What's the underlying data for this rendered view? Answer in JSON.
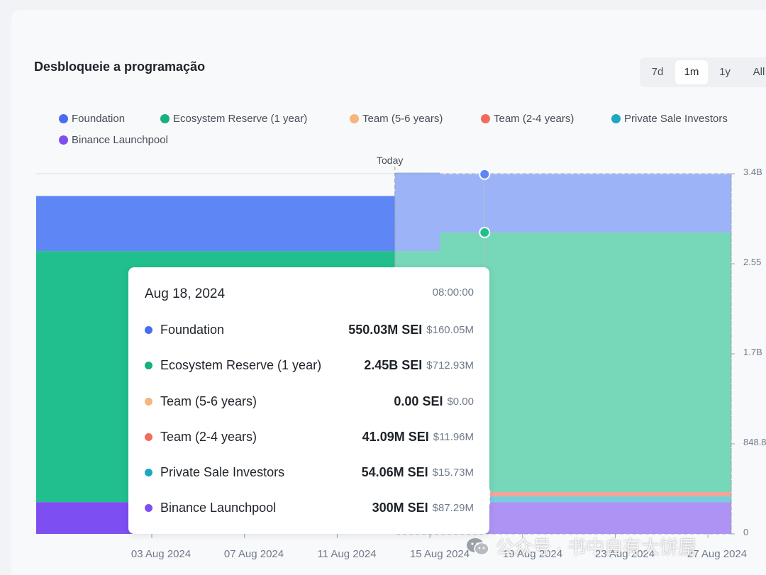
{
  "header": {
    "title": "Desbloqueie a programação"
  },
  "range_buttons": [
    "7d",
    "1m",
    "1y",
    "All"
  ],
  "range_active": "1m",
  "today_label": "Today",
  "colors": {
    "Foundation": "#5f86f5",
    "Ecosystem Reserve (1 year)": "#21bf8e",
    "Team (5-6 years)": "#f5b67c",
    "Team (2-4 years)": "#f26b5b",
    "Private Sale Investors": "#23b3c8",
    "Binance Launchpool": "#7d4ef2"
  },
  "tooltip": {
    "date": "Aug 18, 2024",
    "time": "08:00:00",
    "rows": [
      {
        "name": "Foundation",
        "amount": "550.03M SEI",
        "usd": "$160.05M",
        "color": "#4a6cf0"
      },
      {
        "name": "Ecosystem Reserve (1 year)",
        "amount": "2.45B SEI",
        "usd": "$712.93M",
        "color": "#19b07f"
      },
      {
        "name": "Team (5-6 years)",
        "amount": "0.00 SEI",
        "usd": "$0.00",
        "color": "#f5b67c"
      },
      {
        "name": "Team (2-4 years)",
        "amount": "41.09M SEI",
        "usd": "$11.96M",
        "color": "#f26b5b"
      },
      {
        "name": "Private Sale Investors",
        "amount": "54.06M SEI",
        "usd": "$15.73M",
        "color": "#1ea8bd"
      },
      {
        "name": "Binance Launchpool",
        "amount": "300M SEI",
        "usd": "$87.29M",
        "color": "#7d4ef2"
      }
    ]
  },
  "watermark": "公众号 · 书中自有大饼屋",
  "chart_data": {
    "type": "area",
    "stacked": true,
    "legend": [
      "Foundation",
      "Ecosystem Reserve (1 year)",
      "Team (5-6 years)",
      "Team (2-4 years)",
      "Private Sale Investors",
      "Binance Launchpool"
    ],
    "legend_position": "top-left",
    "x_ticks": [
      "03 Aug 2024",
      "07 Aug 2024",
      "11 Aug 2024",
      "15 Aug 2024",
      "19 Aug 2024",
      "23 Aug 2024",
      "27 Aug 2024"
    ],
    "y_ticks": [
      "0",
      "848.8",
      "1.7B",
      "2.55",
      "3.4B"
    ],
    "x_range": [
      "2024-07-29",
      "2024-08-29"
    ],
    "y_range": [
      0,
      3.4
    ],
    "y_unit": "B SEI",
    "today": "2024-08-14",
    "highlight_date": "2024-08-18",
    "segments": [
      {
        "from": "2024-07-29",
        "to": "2024-08-14",
        "future": false,
        "values": {
          "Binance Launchpool": 0.3,
          "Private Sale Investors": 0,
          "Team (2-4 years)": 0,
          "Team (5-6 years)": 0,
          "Ecosystem Reserve (1 year)": 2.37,
          "Foundation": 0.52
        }
      },
      {
        "from": "2024-08-14",
        "to": "2024-08-16",
        "future": true,
        "values": {
          "Binance Launchpool": 0.3,
          "Private Sale Investors": 0,
          "Team (2-4 years)": 0,
          "Team (5-6 years)": 0,
          "Ecosystem Reserve (1 year)": 2.37,
          "Foundation": 0.74
        }
      },
      {
        "from": "2024-08-16",
        "to": "2024-08-29",
        "future": true,
        "values": {
          "Binance Launchpool": 0.3,
          "Private Sale Investors": 0.054,
          "Team (2-4 years)": 0.04109,
          "Team (5-6 years)": 0.0,
          "Ecosystem Reserve (1 year)": 2.45,
          "Foundation": 0.55003
        }
      }
    ]
  }
}
